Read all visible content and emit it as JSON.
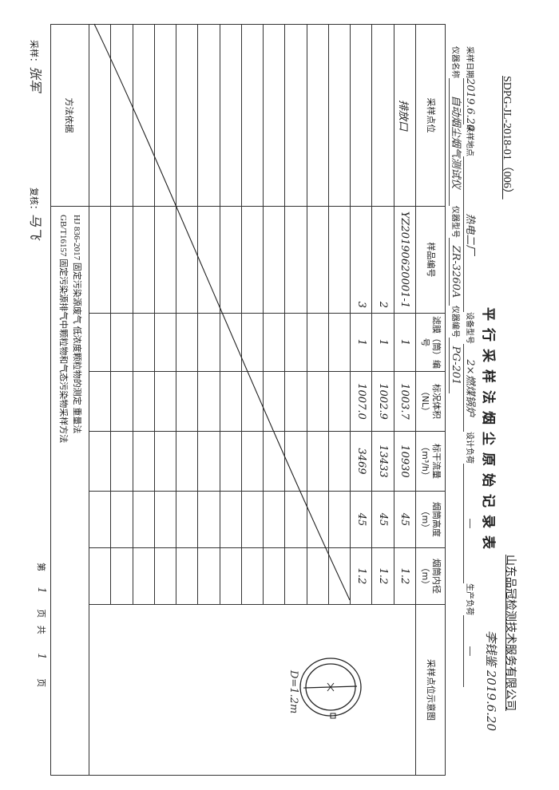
{
  "doc_code": "SDPG-JL-2018-01（006）",
  "title": "平行采样法烟尘原始记录表",
  "company": "山东品冠检测技术服务有限公司",
  "info": {
    "sample_date_label": "采样日期",
    "sample_date": "2019.6.20",
    "sample_site_label": "采样地点",
    "sample_site": "热电二厂",
    "equipment_model_label": "设备型号",
    "equipment_model": "2×燃煤锅炉",
    "design_load_label": "设计负荷",
    "design_load": "—",
    "production_load_label": "生产负荷",
    "production_load": "—",
    "signature": "李钱鉴 2019.6.20",
    "instrument_name_label": "仪器名称",
    "instrument_name": "自动烟尘烟气测试仪",
    "instrument_model_label": "仪器型号",
    "instrument_model": "ZR-3260A",
    "instrument_no_label": "仪器编号",
    "instrument_no": "PG-201"
  },
  "table": {
    "headers": [
      "采样点位",
      "样品编号",
      "滤膜（筒）编号",
      "标况体积（NL）",
      "标干流量（m³/h）",
      "烟筒高度（m）",
      "烟筒内径（m）",
      "采样点位示意图"
    ],
    "rows": [
      {
        "site": "排放口",
        "sample_no": "YZ20190620001-1",
        "filter": "1",
        "volume": "1003.7",
        "flow": "10930",
        "height": "45",
        "diameter": "1.2"
      },
      {
        "site": "",
        "sample_no": "2",
        "filter": "1",
        "volume": "1002.9",
        "flow": "13433",
        "height": "45",
        "diameter": "1.2"
      },
      {
        "site": "",
        "sample_no": "3",
        "filter": "1",
        "volume": "1007.0",
        "flow": "3469",
        "height": "45",
        "diameter": "1.2"
      }
    ],
    "diagram_label": "D=1.2m",
    "method_label": "方法依据",
    "methods": [
      "HJ 836-2017  固定污染源废气 低浓度颗粒物的测定 重量法",
      "GB/T16157  固定污染源排气中颗粒物和气态污染物采样方法"
    ]
  },
  "footer": {
    "sampler_label": "采样：",
    "sampler": "张军",
    "reviewer_label": "复核：",
    "reviewer": "马飞",
    "page_prefix": "第",
    "page_no": "1",
    "page_mid": "页 共",
    "page_total": "1",
    "page_suffix": "页"
  }
}
